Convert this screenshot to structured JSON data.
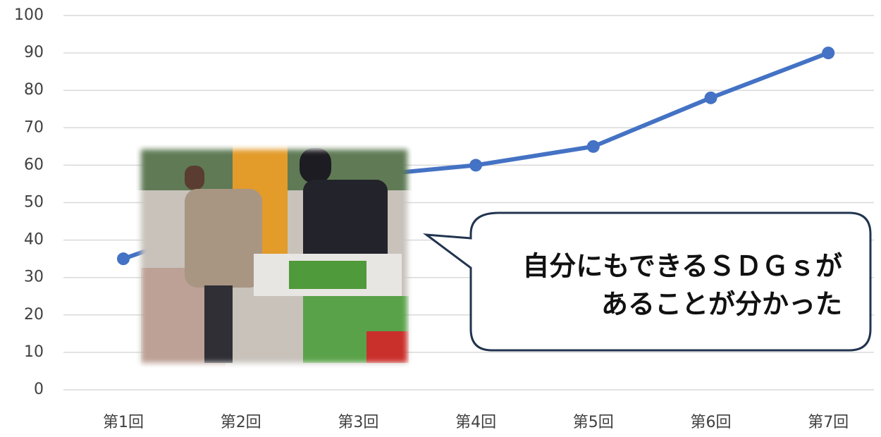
{
  "chart_data": {
    "type": "line",
    "categories": [
      "第1回",
      "第2回",
      "第3回",
      "第4回",
      "第5回",
      "第6回",
      "第7回"
    ],
    "values": [
      35,
      46,
      57,
      60,
      65,
      78,
      90
    ],
    "color": "#4472c4",
    "ylim": [
      0,
      100
    ],
    "yticks": [
      0,
      10,
      20,
      30,
      40,
      50,
      60,
      70,
      80,
      90,
      100
    ],
    "grid": true,
    "annotation": [
      "自分にもできるＳＤＧｓが",
      "あることが分かった"
    ]
  }
}
